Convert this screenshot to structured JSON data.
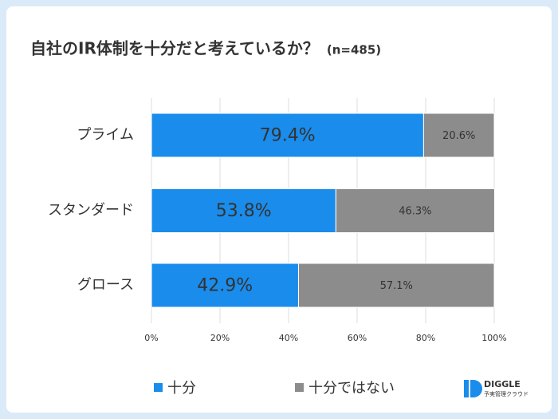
{
  "chart_data": {
    "type": "stacked-bar-horizontal",
    "title": "自社のIR体制を十分だと考えているか？",
    "subtitle": "(n=485)",
    "categories": [
      "プライム",
      "スタンダード",
      "グロース"
    ],
    "series": [
      {
        "name": "十分",
        "color": "#1a8ceb",
        "values": [
          79.4,
          53.8,
          42.9
        ],
        "value_labels": [
          "79.4%",
          "53.8%",
          "42.9%"
        ]
      },
      {
        "name": "十分ではない",
        "color": "#8c8c8c",
        "values": [
          20.6,
          46.3,
          57.1
        ],
        "value_labels": [
          "20.6%",
          "46.3%",
          "57.1%"
        ]
      }
    ],
    "xlim": [
      0,
      100
    ],
    "xticks": [
      {
        "value": 0,
        "label": "0%"
      },
      {
        "value": 20,
        "label": "20%"
      },
      {
        "value": 40,
        "label": "40%"
      },
      {
        "value": 60,
        "label": "60%"
      },
      {
        "value": 80,
        "label": "80%"
      },
      {
        "value": 100,
        "label": "100%"
      }
    ],
    "grid": true,
    "legend": "bottom"
  },
  "branding": {
    "name": "DIGGLE",
    "tagline": "予実管理クラウド"
  }
}
